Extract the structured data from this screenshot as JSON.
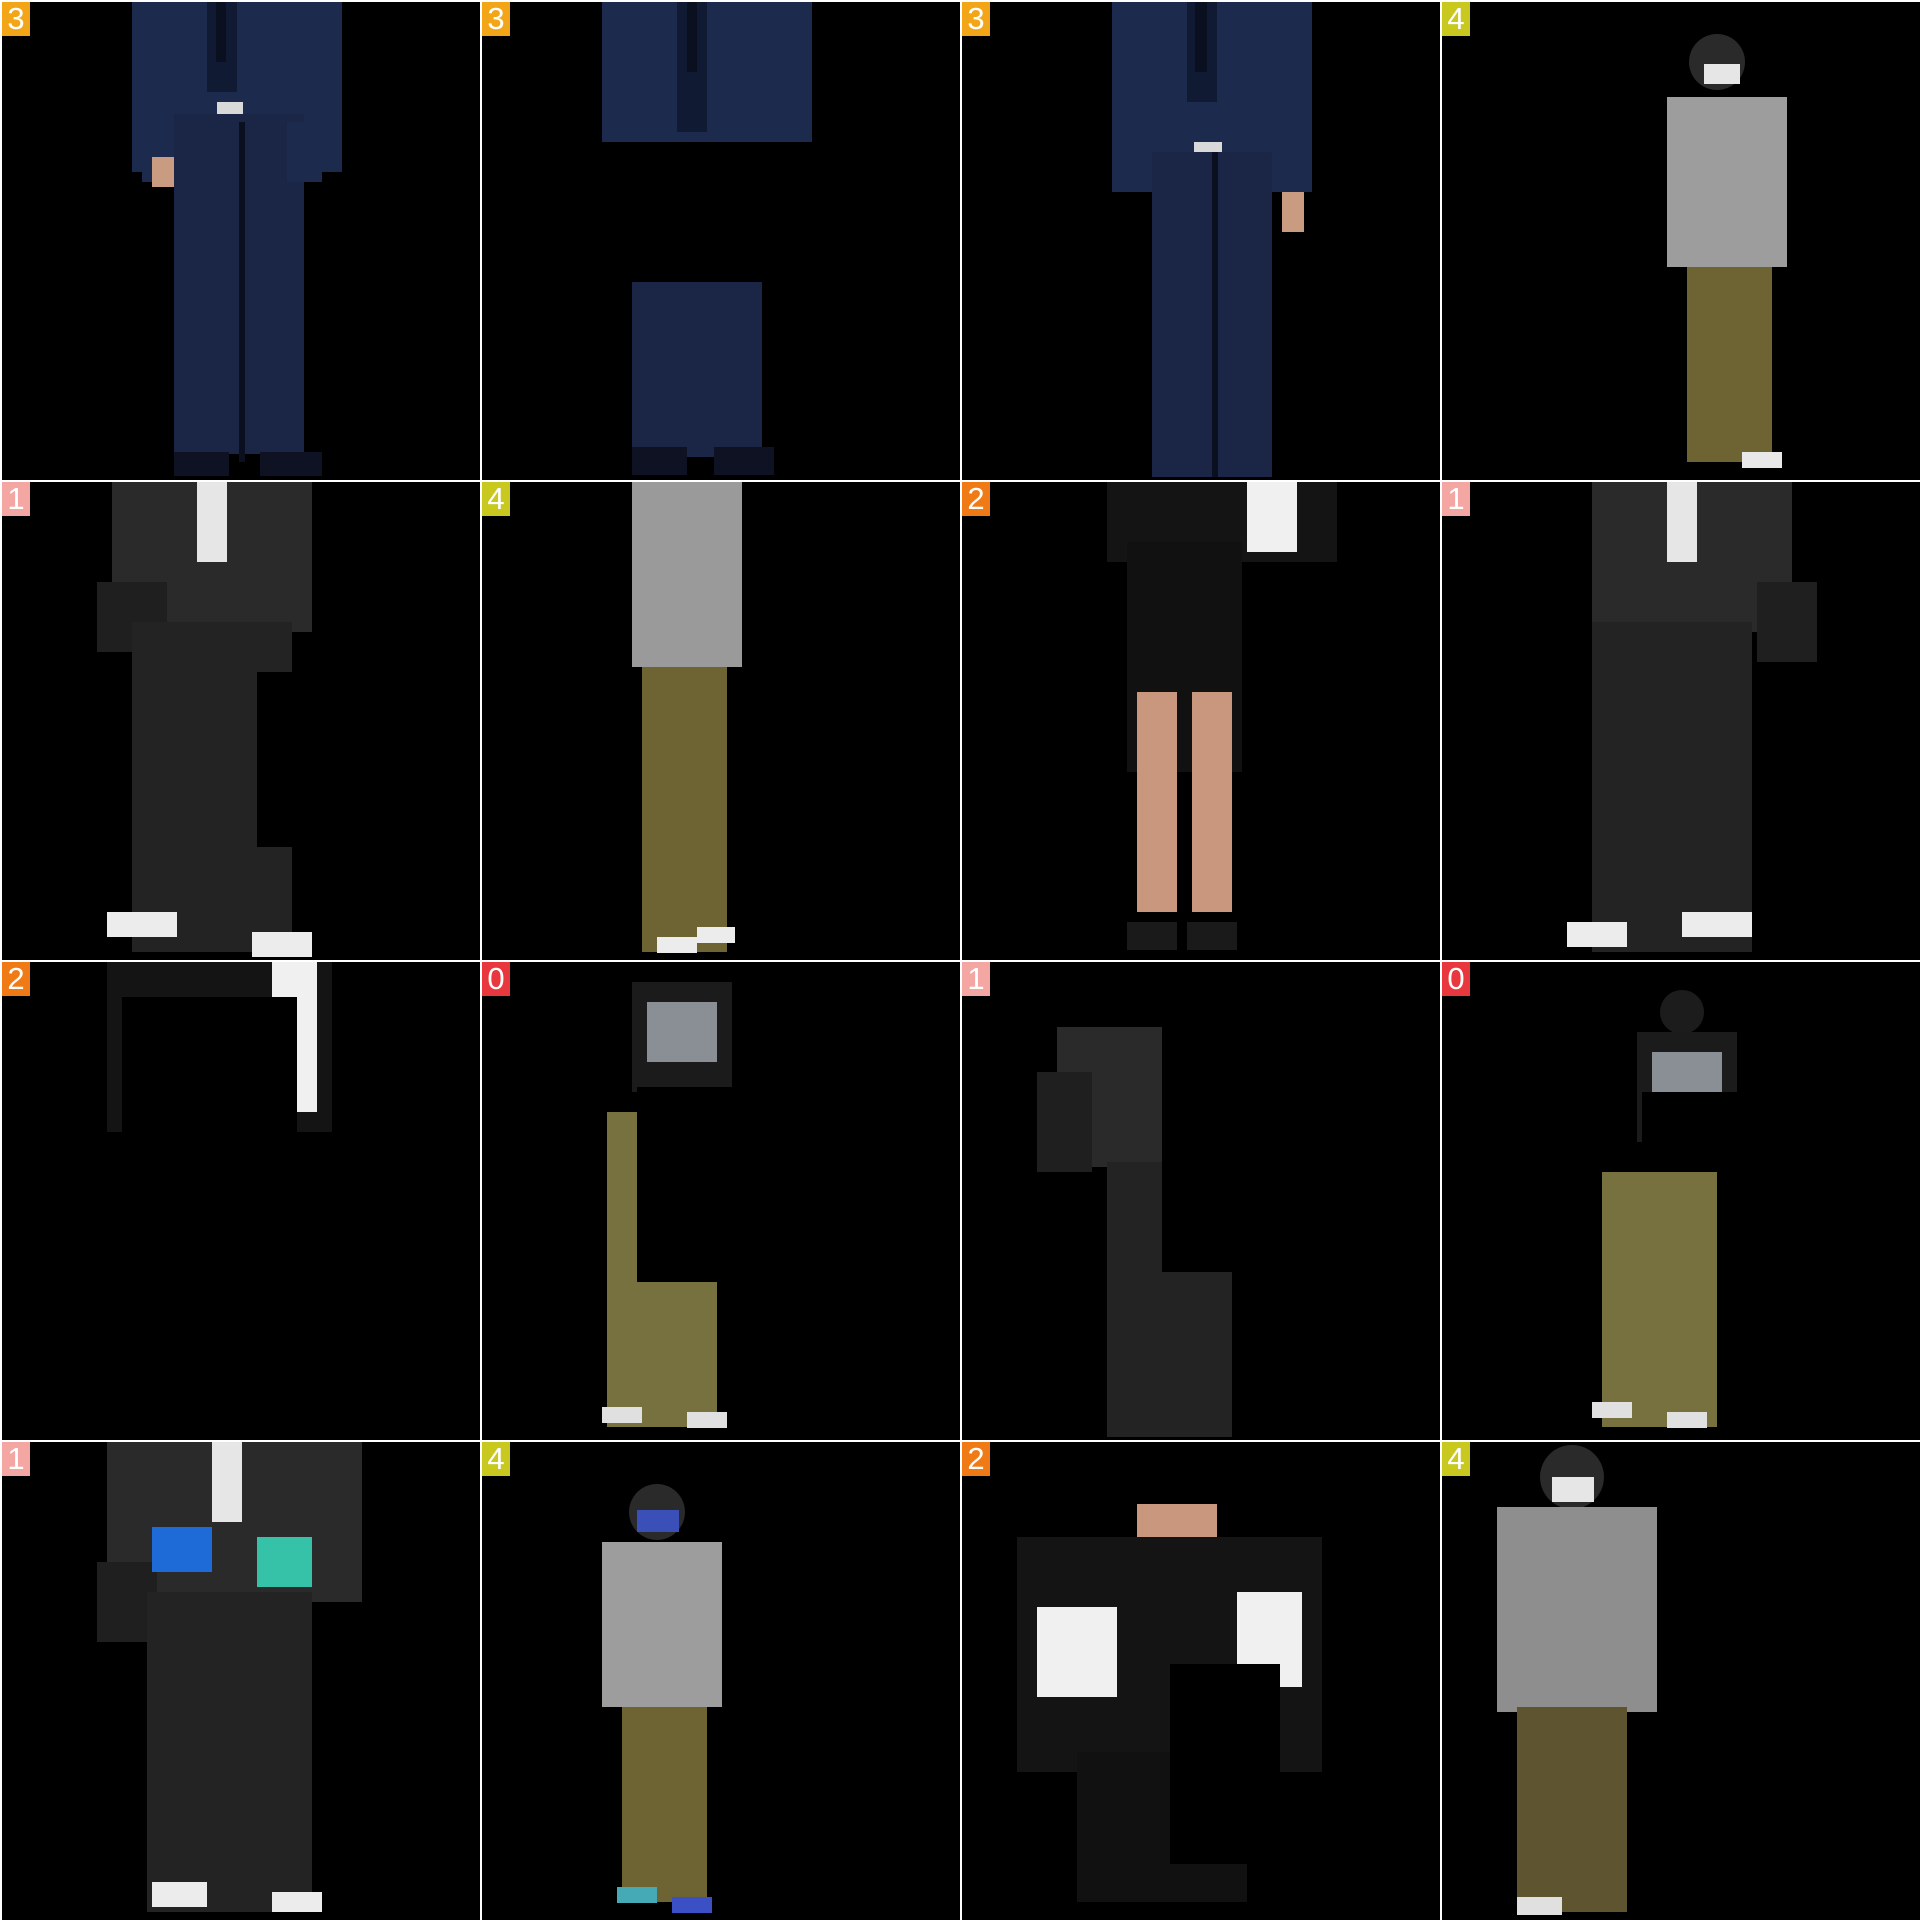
{
  "label_colors": {
    "0": "#e8383d",
    "1": "#f4a6a3",
    "2": "#f07b16",
    "3": "#f2a516",
    "4": "#c8c81e"
  },
  "tiles": [
    {
      "label": "3",
      "outfit": "navy-suit",
      "view": "torso-legs"
    },
    {
      "label": "3",
      "outfit": "navy-suit",
      "view": "masked-middle"
    },
    {
      "label": "3",
      "outfit": "navy-suit",
      "view": "torso-legs"
    },
    {
      "label": "4",
      "outfit": "grey-hoodie-olive-pants",
      "view": "full-small"
    },
    {
      "label": "1",
      "outfit": "black-denim-set",
      "view": "masked-leg"
    },
    {
      "label": "4",
      "outfit": "grey-hoodie-olive-pants",
      "view": "body"
    },
    {
      "label": "2",
      "outfit": "black-white-track-jacket-shorts",
      "view": "legs"
    },
    {
      "label": "1",
      "outfit": "black-denim-set",
      "view": "mirrored"
    },
    {
      "label": "2",
      "outfit": "black-white-track-jacket-shorts",
      "view": "masked-block"
    },
    {
      "label": "0",
      "outfit": "black-tee-olive-cargo",
      "view": "masked-block"
    },
    {
      "label": "1",
      "outfit": "black-denim-set",
      "view": "masked-block"
    },
    {
      "label": "0",
      "outfit": "black-tee-olive-cargo",
      "view": "full-small"
    },
    {
      "label": "1",
      "outfit": "black-denim-set",
      "view": "colorized-hands"
    },
    {
      "label": "4",
      "outfit": "grey-hoodie-olive-pants",
      "view": "colorized-face"
    },
    {
      "label": "2",
      "outfit": "black-white-track-jacket-shorts",
      "view": "masked-block"
    },
    {
      "label": "4",
      "outfit": "grey-hoodie-olive-pants",
      "view": "full-large"
    }
  ]
}
